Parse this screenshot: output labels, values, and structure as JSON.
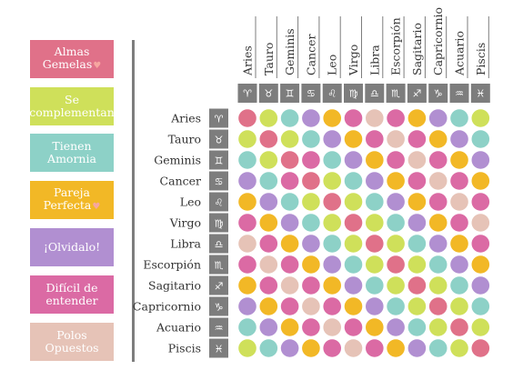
{
  "legend": [
    {
      "label": "Almas\nGemelas",
      "color": "#e07189",
      "icon": "heart-icon"
    },
    {
      "label": "Se\ncomplementan",
      "color": "#cfe05a",
      "icon": ""
    },
    {
      "label": "Tienen\nAmornia",
      "color": "#8dd1c7",
      "icon": ""
    },
    {
      "label": "Pareja\nPerfecta",
      "color": "#f2b826",
      "icon": "heart-icon"
    },
    {
      "label": "¡Olvidalo!",
      "color": "#b18fd1",
      "icon": ""
    },
    {
      "label": "Difícil de\nentender",
      "color": "#db6aa4",
      "icon": ""
    },
    {
      "label": "Polos\nOpuestos",
      "color": "#e6c3b7",
      "icon": ""
    }
  ],
  "chart_data": {
    "type": "heatmap",
    "signs": [
      "Aries",
      "Tauro",
      "Geminis",
      "Cancer",
      "Leo",
      "Virgo",
      "Libra",
      "Escorpión",
      "Sagitario",
      "Capricornio",
      "Acuario",
      "Piscis"
    ],
    "glyphs": [
      "♈",
      "♉",
      "♊",
      "♋",
      "♌",
      "♍",
      "♎",
      "♏",
      "♐",
      "♑",
      "♒",
      "♓"
    ],
    "categories": [
      "Almas Gemelas",
      "Se complementan",
      "Tienen Amornia",
      "Pareja Perfecta",
      "¡Olvidalo!",
      "Difícil de entender",
      "Polos Opuestos"
    ],
    "colors": [
      "#e07189",
      "#cfe05a",
      "#8dd1c7",
      "#f2b826",
      "#b18fd1",
      "#db6aa4",
      "#e6c3b7"
    ],
    "matrix": [
      [
        0,
        1,
        2,
        4,
        3,
        5,
        6,
        5,
        3,
        4,
        2,
        1
      ],
      [
        1,
        0,
        1,
        2,
        4,
        3,
        5,
        6,
        5,
        3,
        4,
        2
      ],
      [
        2,
        1,
        0,
        5,
        2,
        4,
        3,
        5,
        6,
        5,
        3,
        4
      ],
      [
        4,
        2,
        5,
        0,
        1,
        2,
        4,
        3,
        5,
        6,
        5,
        3
      ],
      [
        3,
        4,
        2,
        1,
        0,
        1,
        2,
        4,
        3,
        5,
        6,
        5
      ],
      [
        5,
        3,
        4,
        2,
        1,
        0,
        1,
        2,
        4,
        3,
        5,
        6
      ],
      [
        6,
        5,
        3,
        4,
        2,
        1,
        0,
        1,
        2,
        4,
        3,
        5
      ],
      [
        5,
        6,
        5,
        3,
        4,
        2,
        1,
        0,
        1,
        2,
        4,
        3
      ],
      [
        3,
        5,
        6,
        5,
        3,
        4,
        2,
        1,
        0,
        1,
        2,
        4
      ],
      [
        4,
        3,
        5,
        6,
        5,
        3,
        4,
        2,
        1,
        0,
        1,
        2
      ],
      [
        2,
        4,
        3,
        5,
        6,
        5,
        3,
        4,
        2,
        1,
        0,
        1
      ],
      [
        1,
        2,
        4,
        3,
        5,
        6,
        5,
        3,
        4,
        2,
        1,
        0
      ]
    ]
  }
}
